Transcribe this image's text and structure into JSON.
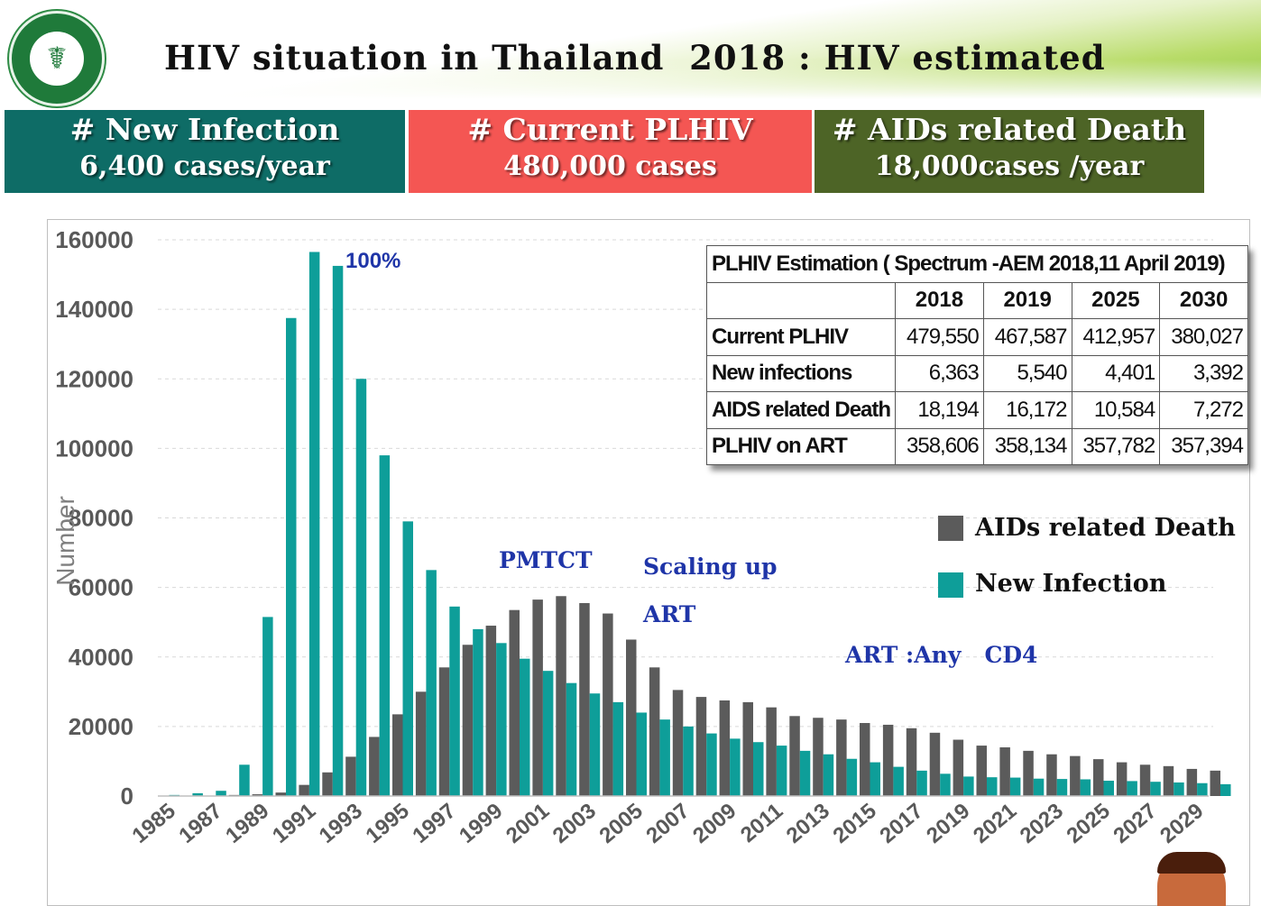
{
  "header": {
    "title": "HIV situation in Thailand  2018 : HIV estimated",
    "logo_icon": "ministry-of-public-health-seal-icon"
  },
  "stat_boxes": [
    {
      "title": "# New Infection",
      "value": "6,400 cases/year",
      "color": "#0e6c66"
    },
    {
      "title": "# Current PLHIV",
      "value": "480,000 cases",
      "color": "#f45653"
    },
    {
      "title": "# AIDs related Death",
      "value": "18,000cases /year",
      "color": "#4d6426"
    }
  ],
  "estimation_table": {
    "caption": "PLHIV Estimation ( Spectrum -AEM 2018,11 April 2019)",
    "years": [
      "2018",
      "2019",
      "2025",
      "2030"
    ],
    "rows": [
      {
        "label": "Current PLHIV",
        "values": [
          "479,550",
          "467,587",
          "412,957",
          "380,027"
        ]
      },
      {
        "label": "New infections",
        "values": [
          "6,363",
          "5,540",
          "4,401",
          "3,392"
        ]
      },
      {
        "label": "AIDS related Death",
        "values": [
          "18,194",
          "16,172",
          "10,584",
          "7,272"
        ]
      },
      {
        "label": "PLHIV on ART",
        "values": [
          "358,606",
          "358,134",
          "357,782",
          "357,394"
        ]
      }
    ]
  },
  "chart_data": {
    "type": "bar",
    "ylabel": "Number",
    "ylim": [
      0,
      160000
    ],
    "yticks": [
      0,
      20000,
      40000,
      60000,
      80000,
      100000,
      120000,
      140000,
      160000
    ],
    "grid": true,
    "legend_position": "right",
    "categories": [
      "1985",
      "1986",
      "1987",
      "1988",
      "1989",
      "1990",
      "1991",
      "1992",
      "1993",
      "1994",
      "1995",
      "1996",
      "1997",
      "1998",
      "1999",
      "2000",
      "2001",
      "2002",
      "2003",
      "2004",
      "2005",
      "2006",
      "2007",
      "2008",
      "2009",
      "2010",
      "2011",
      "2012",
      "2013",
      "2014",
      "2015",
      "2016",
      "2017",
      "2018",
      "2019",
      "2020",
      "2021",
      "2022",
      "2023",
      "2024",
      "2025",
      "2026",
      "2027",
      "2028",
      "2029",
      "2030"
    ],
    "xtick_labels": [
      "1985",
      "1987",
      "1989",
      "1991",
      "1993",
      "1995",
      "1997",
      "1999",
      "2001",
      "2003",
      "2005",
      "2007",
      "2009",
      "2011",
      "2013",
      "2015",
      "2017",
      "2019",
      "2021",
      "2023",
      "2025",
      "2027",
      "2029"
    ],
    "series": [
      {
        "name": "AIDs related Death",
        "color": "#5b5b5b",
        "values": [
          0,
          0,
          100,
          300,
          500,
          1000,
          3200,
          6800,
          11300,
          17000,
          23500,
          30000,
          37000,
          43500,
          49000,
          53500,
          56500,
          57500,
          55500,
          52500,
          45000,
          37000,
          30500,
          28500,
          27500,
          27000,
          25500,
          23000,
          22500,
          22000,
          21000,
          20500,
          19500,
          18200,
          16200,
          14500,
          14000,
          13000,
          12000,
          11500,
          10600,
          9700,
          9000,
          8600,
          7800,
          7300
        ]
      },
      {
        "name": "New Infection",
        "color": "#0e9e99",
        "values": [
          300,
          800,
          1500,
          9000,
          51500,
          137500,
          156500,
          152500,
          120000,
          98000,
          79000,
          65000,
          54500,
          48000,
          44000,
          39500,
          36000,
          32500,
          29500,
          27000,
          24000,
          22000,
          20000,
          18000,
          16500,
          15500,
          14500,
          13000,
          12000,
          10700,
          9700,
          8400,
          7300,
          6400,
          5600,
          5400,
          5300,
          5000,
          4900,
          4800,
          4400,
          4300,
          4100,
          3900,
          3700,
          3400
        ]
      }
    ],
    "annotations": [
      "100%",
      "PMTCT",
      "Scaling up",
      "ART",
      "ART :Any   CD4"
    ]
  }
}
